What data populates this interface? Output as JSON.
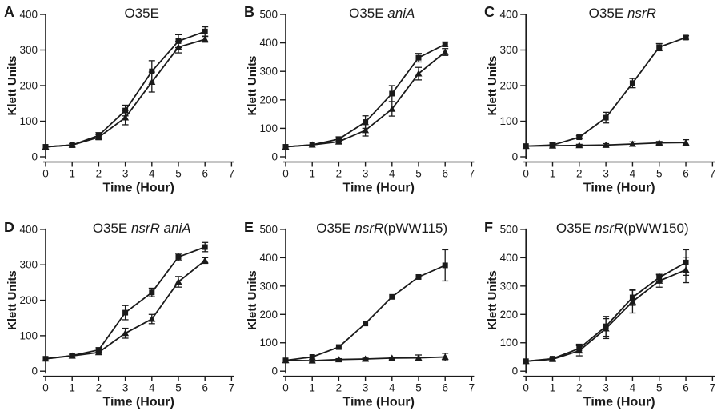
{
  "figure": {
    "background": "#ffffff",
    "ink": "#1a1a1a",
    "y_axis_title": "Klett Units",
    "x_axis_title": "Time (Hour)"
  },
  "chart_data": [
    {
      "type": "line",
      "panel_label": "A",
      "title": "O35E",
      "title_parts": [
        {
          "text": "O35E",
          "italic": false
        }
      ],
      "xlabel": "Time (Hour)",
      "ylabel": "Klett Units",
      "xlim": [
        0,
        7
      ],
      "ylim": [
        0,
        400
      ],
      "xticks": [
        0,
        1,
        2,
        3,
        4,
        5,
        6,
        7
      ],
      "yticks": [
        0,
        100,
        200,
        300,
        400
      ],
      "x": [
        0,
        1,
        2,
        3,
        4,
        5,
        6
      ],
      "series": [
        {
          "name": "square-series",
          "marker": "square",
          "values": [
            28,
            33,
            60,
            130,
            240,
            325,
            352
          ],
          "errors": [
            0,
            4,
            8,
            15,
            30,
            18,
            13
          ]
        },
        {
          "name": "triangle-series",
          "marker": "triangle",
          "values": [
            28,
            33,
            55,
            110,
            210,
            308,
            330
          ],
          "errors": [
            0,
            4,
            7,
            20,
            28,
            16,
            8
          ]
        }
      ]
    },
    {
      "type": "line",
      "panel_label": "B",
      "title": "O35E aniA",
      "title_parts": [
        {
          "text": "O35E ",
          "italic": false
        },
        {
          "text": "aniA",
          "italic": true
        }
      ],
      "xlabel": "Time (Hour)",
      "ylabel": "Klett Units",
      "xlim": [
        0,
        7
      ],
      "ylim": [
        0,
        500
      ],
      "xticks": [
        0,
        1,
        2,
        3,
        4,
        5,
        6,
        7
      ],
      "yticks": [
        0,
        100,
        200,
        300,
        400,
        500
      ],
      "x": [
        0,
        1,
        2,
        3,
        4,
        5,
        6
      ],
      "series": [
        {
          "name": "square-series",
          "marker": "square",
          "values": [
            35,
            42,
            62,
            122,
            222,
            348,
            395
          ],
          "errors": [
            0,
            0,
            8,
            22,
            28,
            15,
            8
          ]
        },
        {
          "name": "triangle-series",
          "marker": "triangle",
          "values": [
            35,
            42,
            53,
            93,
            168,
            292,
            368
          ],
          "errors": [
            0,
            0,
            8,
            20,
            25,
            22,
            12
          ]
        }
      ]
    },
    {
      "type": "line",
      "panel_label": "C",
      "title": "O35E nsrR",
      "title_parts": [
        {
          "text": "O35E ",
          "italic": false
        },
        {
          "text": "nsrR",
          "italic": true
        }
      ],
      "xlabel": "Time (Hour)",
      "ylabel": "Klett Units",
      "xlim": [
        0,
        7
      ],
      "ylim": [
        0,
        400
      ],
      "xticks": [
        0,
        1,
        2,
        3,
        4,
        5,
        6,
        7
      ],
      "yticks": [
        0,
        100,
        200,
        300,
        400
      ],
      "x": [
        0,
        1,
        2,
        3,
        4,
        5,
        6
      ],
      "series": [
        {
          "name": "square-series",
          "marker": "square",
          "values": [
            30,
            33,
            55,
            110,
            207,
            308,
            335
          ],
          "errors": [
            0,
            6,
            4,
            15,
            13,
            10,
            5
          ]
        },
        {
          "name": "triangle-series",
          "marker": "triangle",
          "values": [
            30,
            31,
            32,
            33,
            36,
            39,
            40
          ],
          "errors": [
            0,
            5,
            3,
            4,
            6,
            4,
            8
          ]
        }
      ]
    },
    {
      "type": "line",
      "panel_label": "D",
      "title": "O35E nsrR aniA",
      "title_parts": [
        {
          "text": "O35E ",
          "italic": false
        },
        {
          "text": "nsrR aniA",
          "italic": true
        }
      ],
      "xlabel": "Time (Hour)",
      "ylabel": "Klett Units",
      "xlim": [
        0,
        7
      ],
      "ylim": [
        0,
        400
      ],
      "xticks": [
        0,
        1,
        2,
        3,
        4,
        5,
        6,
        7
      ],
      "yticks": [
        0,
        100,
        200,
        300,
        400
      ],
      "x": [
        0,
        1,
        2,
        3,
        4,
        5,
        6
      ],
      "series": [
        {
          "name": "square-series",
          "marker": "square",
          "values": [
            35,
            44,
            60,
            165,
            222,
            322,
            350
          ],
          "errors": [
            0,
            4,
            6,
            20,
            12,
            10,
            13
          ]
        },
        {
          "name": "triangle-series",
          "marker": "triangle",
          "values": [
            35,
            43,
            53,
            107,
            147,
            252,
            312
          ],
          "errors": [
            0,
            4,
            6,
            14,
            13,
            15,
            8
          ]
        }
      ]
    },
    {
      "type": "line",
      "panel_label": "E",
      "title": "O35E nsrR(pWW115)",
      "title_parts": [
        {
          "text": "O35E ",
          "italic": false
        },
        {
          "text": "nsrR",
          "italic": true
        },
        {
          "text": "(pWW115)",
          "italic": false
        }
      ],
      "xlabel": "Time (Hour)",
      "ylabel": "Klett Units",
      "xlim": [
        0,
        7
      ],
      "ylim": [
        0,
        500
      ],
      "xticks": [
        0,
        1,
        2,
        3,
        4,
        5,
        6,
        7
      ],
      "yticks": [
        0,
        100,
        200,
        300,
        400,
        500
      ],
      "x": [
        0,
        1,
        2,
        3,
        4,
        5,
        6
      ],
      "series": [
        {
          "name": "square-series",
          "marker": "square",
          "values": [
            38,
            50,
            85,
            168,
            262,
            332,
            373
          ],
          "errors": [
            0,
            0,
            0,
            0,
            0,
            0,
            55
          ]
        },
        {
          "name": "triangle-series",
          "marker": "triangle",
          "values": [
            38,
            37,
            41,
            43,
            46,
            47,
            50
          ],
          "errors": [
            0,
            5,
            3,
            3,
            3,
            10,
            13
          ]
        }
      ]
    },
    {
      "type": "line",
      "panel_label": "F",
      "title": "O35E nsrR(pWW150)",
      "title_parts": [
        {
          "text": "O35E ",
          "italic": false
        },
        {
          "text": "nsrR",
          "italic": true
        },
        {
          "text": "(pWW150)",
          "italic": false
        }
      ],
      "xlabel": "Time (Hour)",
      "ylabel": "Klett Units",
      "xlim": [
        0,
        7
      ],
      "ylim": [
        0,
        500
      ],
      "xticks": [
        0,
        1,
        2,
        3,
        4,
        5,
        6,
        7
      ],
      "yticks": [
        0,
        100,
        200,
        300,
        400,
        500
      ],
      "x": [
        0,
        1,
        2,
        3,
        4,
        5,
        6
      ],
      "series": [
        {
          "name": "square-series",
          "marker": "square",
          "values": [
            35,
            44,
            80,
            158,
            260,
            330,
            383
          ],
          "errors": [
            0,
            6,
            15,
            35,
            28,
            15,
            45
          ]
        },
        {
          "name": "triangle-series",
          "marker": "triangle",
          "values": [
            35,
            42,
            72,
            150,
            245,
            318,
            357
          ],
          "errors": [
            0,
            5,
            18,
            35,
            40,
            22,
            45
          ]
        }
      ]
    }
  ]
}
